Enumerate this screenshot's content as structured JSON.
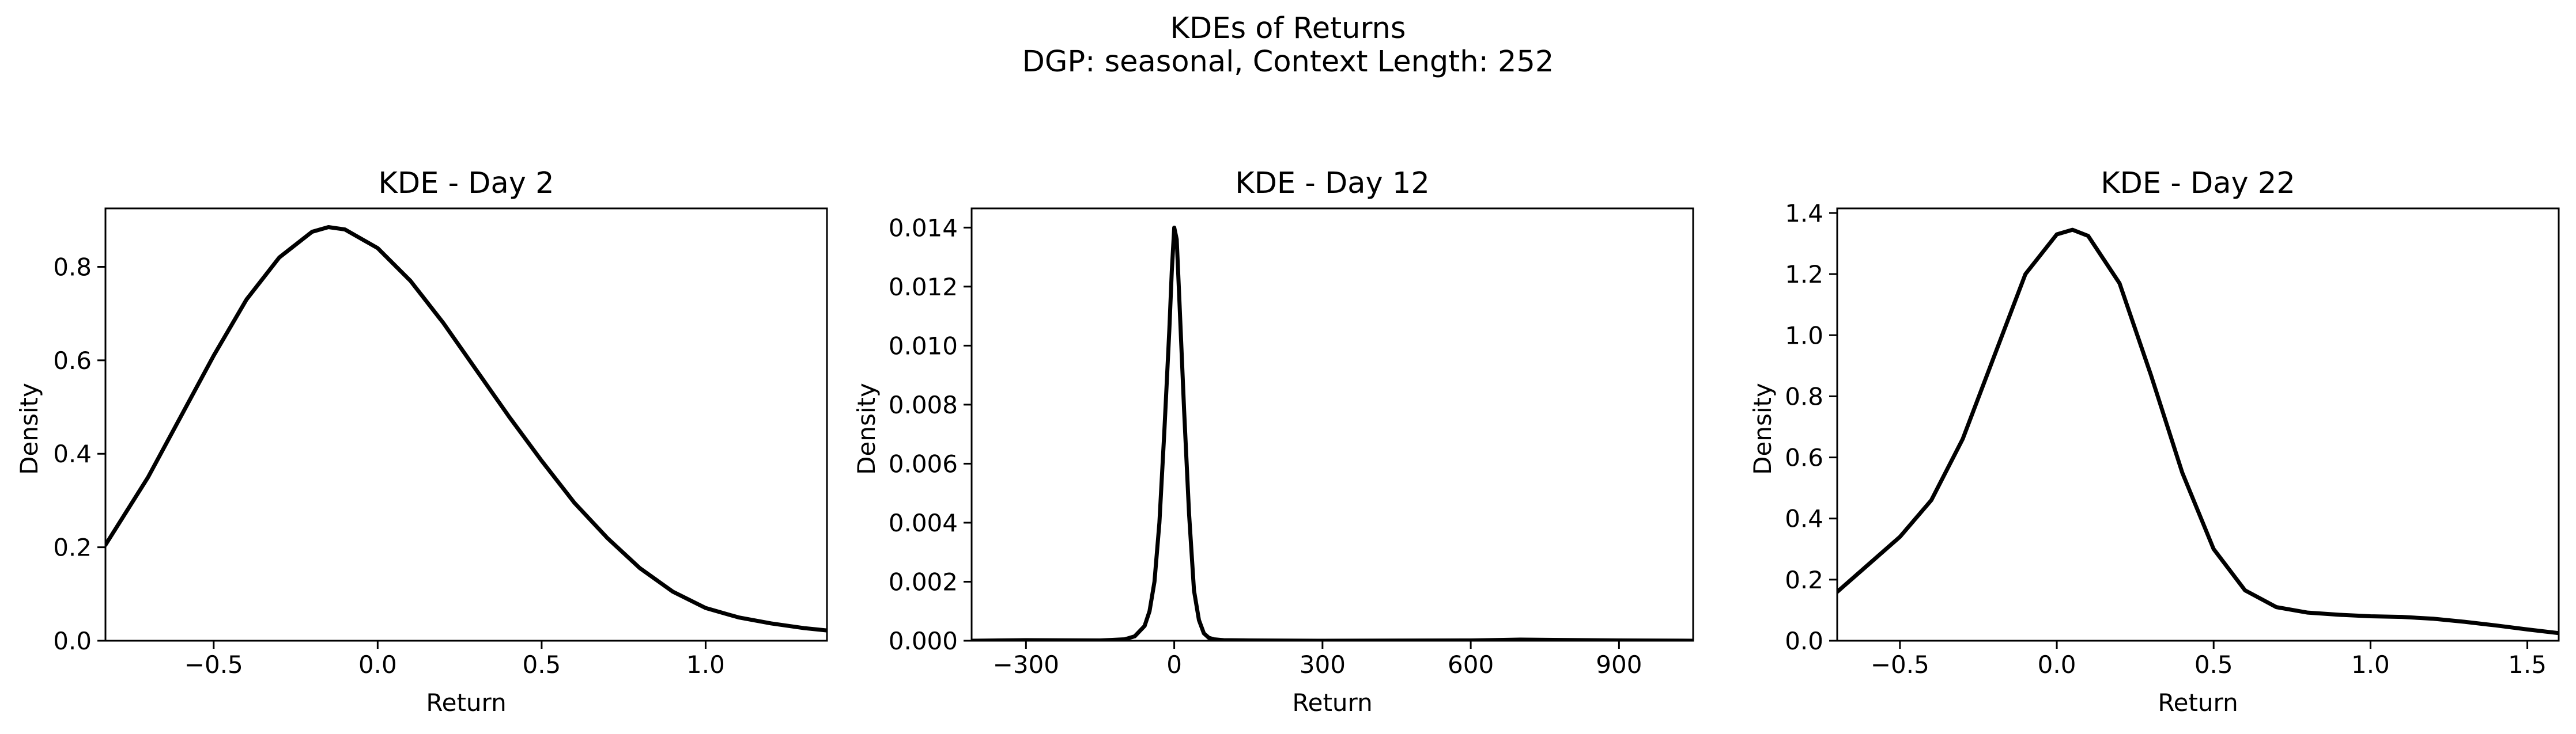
{
  "figure": {
    "title_line1": "KDEs of Returns",
    "title_line2": "DGP: seasonal, Context Length: 252"
  },
  "chart_data": [
    {
      "type": "line",
      "title": "KDE - Day 2",
      "xlabel": "Return",
      "ylabel": "Density",
      "xlim": [
        -0.83,
        1.37
      ],
      "ylim": [
        0,
        0.925
      ],
      "xticks": [
        -0.5,
        0.0,
        0.5,
        1.0
      ],
      "xtick_labels": [
        "−0.5",
        "0.0",
        "0.5",
        "1.0"
      ],
      "yticks": [
        0.0,
        0.2,
        0.4,
        0.6,
        0.8
      ],
      "ytick_labels": [
        "0.0",
        "0.2",
        "0.4",
        "0.6",
        "0.8"
      ],
      "grid": false,
      "series": [
        {
          "color": "#000000",
          "x": [
            -0.83,
            -0.7,
            -0.6,
            -0.5,
            -0.4,
            -0.3,
            -0.2,
            -0.15,
            -0.1,
            0.0,
            0.1,
            0.2,
            0.3,
            0.4,
            0.5,
            0.6,
            0.7,
            0.8,
            0.9,
            1.0,
            1.1,
            1.2,
            1.3,
            1.37
          ],
          "y": [
            0.205,
            0.35,
            0.48,
            0.61,
            0.73,
            0.82,
            0.875,
            0.885,
            0.88,
            0.84,
            0.77,
            0.68,
            0.58,
            0.48,
            0.385,
            0.295,
            0.22,
            0.155,
            0.105,
            0.07,
            0.05,
            0.037,
            0.027,
            0.022
          ]
        }
      ]
    },
    {
      "type": "line",
      "title": "KDE - Day 12",
      "xlabel": "Return",
      "ylabel": "Density",
      "xlim": [
        -410,
        1050
      ],
      "ylim": [
        0,
        0.01465
      ],
      "xticks": [
        -300,
        0,
        300,
        600,
        900
      ],
      "xtick_labels": [
        "−300",
        "0",
        "300",
        "600",
        "900"
      ],
      "yticks": [
        0.0,
        0.002,
        0.004,
        0.006,
        0.008,
        0.01,
        0.012,
        0.014
      ],
      "ytick_labels": [
        "0.000",
        "0.002",
        "0.004",
        "0.006",
        "0.008",
        "0.010",
        "0.012",
        "0.014"
      ],
      "grid": false,
      "series": [
        {
          "color": "#000000",
          "x": [
            -410,
            -300,
            -150,
            -100,
            -80,
            -60,
            -50,
            -40,
            -30,
            -20,
            -10,
            -5,
            0,
            5,
            10,
            20,
            30,
            40,
            50,
            60,
            70,
            80,
            100,
            150,
            300,
            600,
            700,
            900,
            1050
          ],
          "y": [
            0.0,
            2e-05,
            1e-05,
            5e-05,
            0.00015,
            0.0005,
            0.001,
            0.002,
            0.004,
            0.0071,
            0.0105,
            0.0125,
            0.014,
            0.0136,
            0.0117,
            0.0078,
            0.0043,
            0.0017,
            0.0007,
            0.00025,
            0.0001,
            5e-05,
            2e-05,
            1e-05,
            0.0,
            1e-05,
            4e-05,
            1e-05,
            0.0
          ]
        }
      ]
    },
    {
      "type": "line",
      "title": "KDE - Day 22",
      "xlabel": "Return",
      "ylabel": "Density",
      "xlim": [
        -0.7,
        1.6
      ],
      "ylim": [
        0,
        1.415
      ],
      "xticks": [
        -0.5,
        0.0,
        0.5,
        1.0,
        1.5
      ],
      "xtick_labels": [
        "−0.5",
        "0.0",
        "0.5",
        "1.0",
        "1.5"
      ],
      "yticks": [
        0.0,
        0.2,
        0.4,
        0.6,
        0.8,
        1.0,
        1.2,
        1.4
      ],
      "ytick_labels": [
        "0.0",
        "0.2",
        "0.4",
        "0.6",
        "0.8",
        "1.0",
        "1.2",
        "1.4"
      ],
      "grid": false,
      "series": [
        {
          "color": "#000000",
          "x": [
            -0.7,
            -0.6,
            -0.5,
            -0.4,
            -0.3,
            -0.2,
            -0.1,
            0.0,
            0.05,
            0.1,
            0.2,
            0.3,
            0.4,
            0.5,
            0.6,
            0.7,
            0.8,
            0.9,
            1.0,
            1.1,
            1.2,
            1.3,
            1.4,
            1.5,
            1.6
          ],
          "y": [
            0.16,
            0.25,
            0.34,
            0.46,
            0.66,
            0.93,
            1.2,
            1.33,
            1.345,
            1.325,
            1.17,
            0.87,
            0.55,
            0.3,
            0.165,
            0.11,
            0.092,
            0.085,
            0.08,
            0.078,
            0.072,
            0.062,
            0.05,
            0.037,
            0.025
          ]
        }
      ]
    }
  ]
}
